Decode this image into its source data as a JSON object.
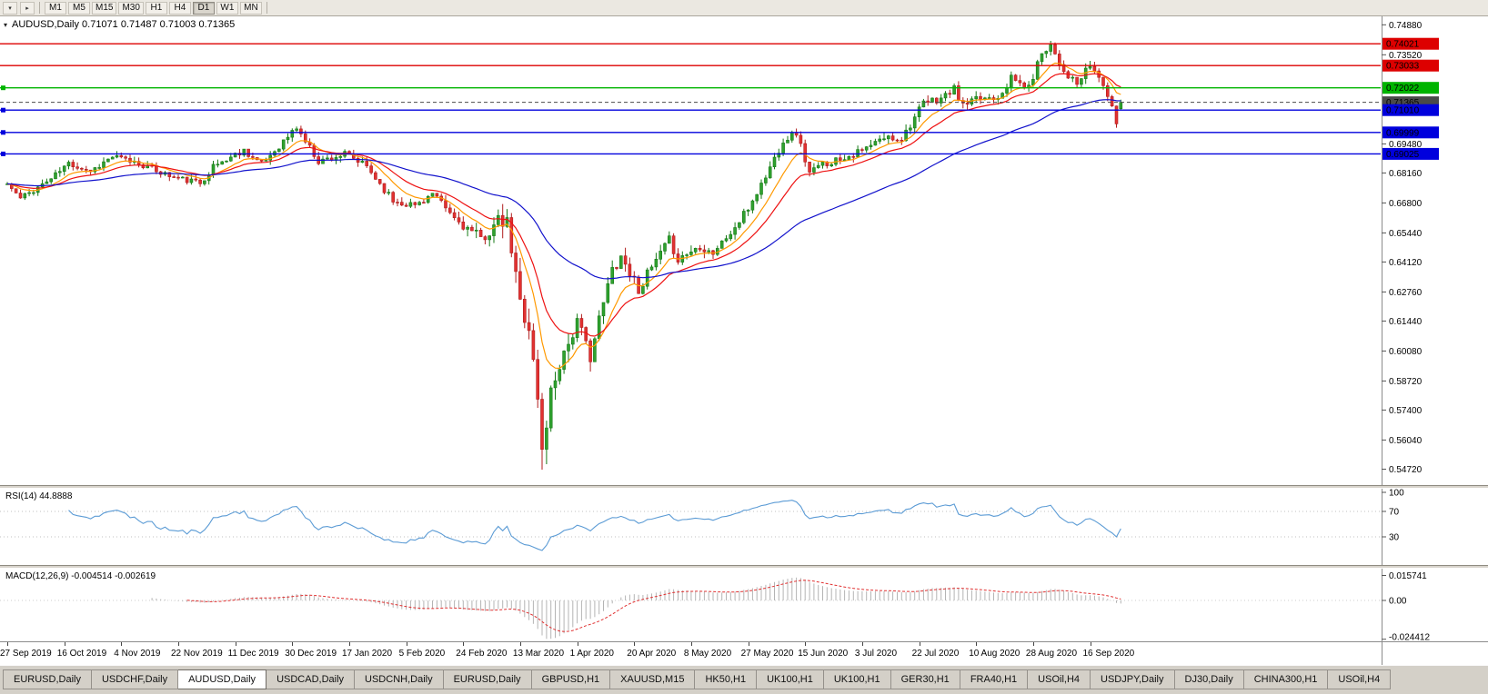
{
  "toolbar": {
    "timeframes": [
      "M1",
      "M5",
      "M15",
      "M30",
      "H1",
      "H4",
      "D1",
      "W1",
      "MN"
    ],
    "active_timeframe": "D1",
    "icons": [
      {
        "name": "dropdown-arrow-icon",
        "glyph": "▾"
      },
      {
        "name": "expand-arrow-icon",
        "glyph": "▸"
      }
    ]
  },
  "chart": {
    "collapse_glyph": "▾",
    "title_line": "AUDUSD,Daily 0.71071 0.71487 0.71003 0.71365"
  },
  "rsi_panel": {
    "label": "RSI(14) 44.8888"
  },
  "macd_panel": {
    "label": "MACD(12,26,9) -0.004514 -0.002619"
  },
  "tabs": {
    "active_index": 2,
    "items": [
      "EURUSD,Daily",
      "USDCHF,Daily",
      "AUDUSD,Daily",
      "USDCAD,Daily",
      "USDCNH,Daily",
      "EURUSD,Daily",
      "GBPUSD,H1",
      "XAUUSD,M15",
      "HK50,H1",
      "UK100,H1",
      "UK100,H1",
      "GER30,H1",
      "FRA40,H1",
      "USOil,H4",
      "USDJPY,Daily",
      "DJ30,Daily",
      "CHINA300,H1",
      "USOil,H4"
    ]
  },
  "chart_data": {
    "type": "candlestick",
    "symbol": "AUDUSD",
    "timeframe": "Daily",
    "last_candle": {
      "open": 0.71071,
      "high": 0.71487,
      "low": 0.71003,
      "close": 0.71365
    },
    "price_scale": {
      "min": 0.5408,
      "max": 0.751
    },
    "num_candles": 255,
    "seed": 11,
    "close_anchors": [
      [
        0,
        0.6766
      ],
      [
        3,
        0.67
      ],
      [
        10,
        0.679
      ],
      [
        14,
        0.686
      ],
      [
        19,
        0.6825
      ],
      [
        24,
        0.689
      ],
      [
        30,
        0.686
      ],
      [
        38,
        0.6795
      ],
      [
        44,
        0.677
      ],
      [
        47,
        0.6845
      ],
      [
        54,
        0.692
      ],
      [
        58,
        0.6855
      ],
      [
        66,
        0.7022
      ],
      [
        71,
        0.687
      ],
      [
        77,
        0.69
      ],
      [
        82,
        0.6845
      ],
      [
        88,
        0.669
      ],
      [
        93,
        0.667
      ],
      [
        97,
        0.672
      ],
      [
        102,
        0.661
      ],
      [
        108,
        0.6515
      ],
      [
        112,
        0.659
      ],
      [
        114,
        0.658
      ],
      [
        117,
        0.623
      ],
      [
        119,
        0.612
      ],
      [
        121,
        0.579
      ],
      [
        122,
        0.555
      ],
      [
        124,
        0.582
      ],
      [
        126,
        0.596
      ],
      [
        130,
        0.6135
      ],
      [
        133,
        0.599
      ],
      [
        138,
        0.638
      ],
      [
        140,
        0.644
      ],
      [
        144,
        0.629
      ],
      [
        151,
        0.651
      ],
      [
        153,
        0.6425
      ],
      [
        158,
        0.6485
      ],
      [
        161,
        0.6455
      ],
      [
        166,
        0.6565
      ],
      [
        169,
        0.6655
      ],
      [
        173,
        0.68
      ],
      [
        177,
        0.6965
      ],
      [
        180,
        0.7
      ],
      [
        183,
        0.6815
      ],
      [
        186,
        0.6855
      ],
      [
        191,
        0.689
      ],
      [
        195,
        0.6915
      ],
      [
        200,
        0.6975
      ],
      [
        204,
        0.6975
      ],
      [
        209,
        0.713
      ],
      [
        213,
        0.7155
      ],
      [
        216,
        0.7195
      ],
      [
        218,
        0.712
      ],
      [
        222,
        0.7155
      ],
      [
        226,
        0.7165
      ],
      [
        229,
        0.7245
      ],
      [
        233,
        0.72
      ],
      [
        236,
        0.7365
      ],
      [
        238,
        0.74
      ],
      [
        241,
        0.728
      ],
      [
        244,
        0.7215
      ],
      [
        247,
        0.7305
      ],
      [
        250,
        0.722
      ],
      [
        252,
        0.7105
      ],
      [
        253,
        0.7045
      ],
      [
        254,
        0.71365
      ]
    ],
    "volatility_anchors": [
      [
        0,
        0.0045
      ],
      [
        100,
        0.0055
      ],
      [
        110,
        0.01
      ],
      [
        115,
        0.014
      ],
      [
        124,
        0.016
      ],
      [
        130,
        0.011
      ],
      [
        140,
        0.009
      ],
      [
        150,
        0.007
      ],
      [
        170,
        0.006
      ],
      [
        254,
        0.0055
      ]
    ],
    "overrides": [
      {
        "i": 122,
        "l": 0.547
      },
      {
        "i": 254,
        "o": 0.71071,
        "h": 0.71487,
        "l": 0.71003,
        "c": 0.71365
      }
    ],
    "moving_averages": [
      {
        "period": 9,
        "color": "#ff9900"
      },
      {
        "period": 18,
        "color": "#ee1111"
      },
      {
        "period": 55,
        "color": "#1111cc"
      }
    ],
    "hlines": [
      {
        "price": 0.74021,
        "label": "0.74021",
        "color": "#dd0000"
      },
      {
        "price": 0.73033,
        "label": "0.73033",
        "color": "#dd0000"
      },
      {
        "price": 0.72022,
        "label": "0.72022",
        "color": "#00b400",
        "handle": true
      },
      {
        "price": 0.71365,
        "label": "0.71365",
        "color": "#4a4a4a",
        "dashed": true,
        "width": 1
      },
      {
        "price": 0.7101,
        "label": "0.71010",
        "color": "#0000dd",
        "handle": true
      },
      {
        "price": 0.69999,
        "label": "0.69999",
        "color": "#0000dd",
        "handle": true
      },
      {
        "price": 0.69025,
        "label": "0.69025",
        "color": "#0000dd",
        "handle": true
      }
    ],
    "price_axis_ticks": [
      "0.74880",
      "0.73520",
      "0.69480",
      "0.68160",
      "0.66800",
      "0.65440",
      "0.64120",
      "0.62760",
      "0.61440",
      "0.60080",
      "0.58720",
      "0.57400",
      "0.56040",
      "0.54720"
    ],
    "rsi": {
      "period": 14,
      "current_value": "44.8888",
      "levels": [
        70,
        30
      ],
      "axis_labels": [
        "100",
        "70",
        "30"
      ],
      "color": "#5b9bd5"
    },
    "macd": {
      "fast": 12,
      "slow": 26,
      "signal_period": 9,
      "main_value": "-0.004514",
      "signal_value": "-0.002619",
      "axis_labels": [
        "0.015741",
        "0.00",
        "-0.024412"
      ],
      "histogram_color": "#b4b4b4",
      "signal_color": "#e03030"
    },
    "x_axis": {
      "step": 13,
      "labels": [
        "27 Sep 2019",
        "16 Oct 2019",
        "4 Nov 2019",
        "22 Nov 2019",
        "11 Dec 2019",
        "30 Dec 2019",
        "17 Jan 2020",
        "5 Feb 2020",
        "24 Feb 2020",
        "13 Mar 2020",
        "1 Apr 2020",
        "20 Apr 2020",
        "8 May 2020",
        "27 May 2020",
        "15 Jun 2020",
        "3 Jul 2020",
        "22 Jul 2020",
        "10 Aug 2020",
        "28 Aug 2020",
        "16 Sep 2020"
      ]
    }
  }
}
